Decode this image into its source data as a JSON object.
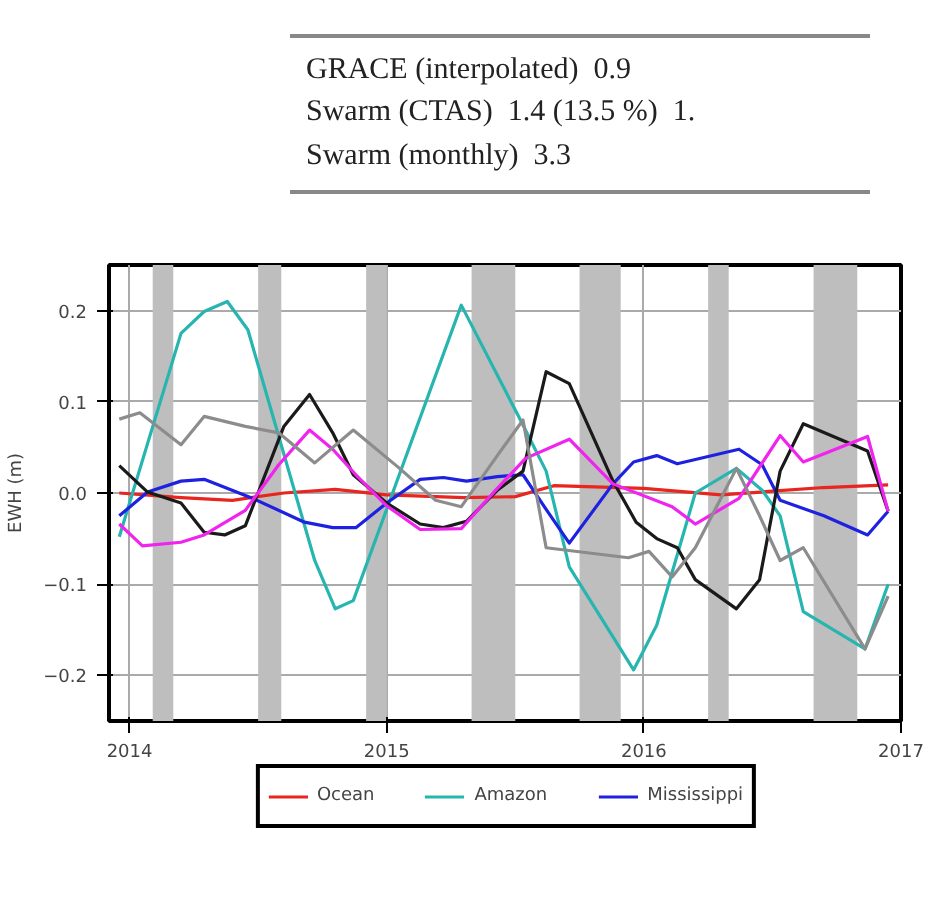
{
  "chart_data": {
    "type": "line",
    "ylabel": "EWH (m)",
    "annotations": [
      "GRACE (interpolated)  0.9",
      "Swarm (CTAS)  1.4 (13.5 %)  1.",
      "Swarm (monthly)  3.3"
    ],
    "xlim": [
      2013.92,
      2017.0
    ],
    "xticks": [
      2014,
      2015,
      2016,
      2017
    ],
    "ylim": [
      -0.25,
      0.25
    ],
    "yticks": [
      {
        "value": -0.2,
        "label": "−0.2"
      },
      {
        "value": -0.1,
        "label": "−0.1"
      },
      {
        "value": 0,
        "label": "0.0"
      },
      {
        "value": 0.1,
        "label": "0.1"
      },
      {
        "value": 0.2,
        "label": "0.2"
      }
    ],
    "grid": true,
    "legend": "bottom",
    "line_style": "solid",
    "bands": [
      {
        "axis": "x",
        "from": 2014.09,
        "to": 2014.17,
        "color": "#bebebe"
      },
      {
        "axis": "x",
        "from": 2014.5,
        "to": 2014.59,
        "color": "#bebebe"
      },
      {
        "axis": "x",
        "from": 2014.92,
        "to": 2015.0,
        "color": "#bebebe"
      },
      {
        "axis": "x",
        "from": 2015.33,
        "to": 2015.5,
        "color": "#bebebe"
      },
      {
        "axis": "x",
        "from": 2015.75,
        "to": 2015.91,
        "color": "#bebebe"
      },
      {
        "axis": "x",
        "from": 2016.25,
        "to": 2016.33,
        "color": "#bebebe"
      },
      {
        "axis": "x",
        "from": 2016.66,
        "to": 2016.83,
        "color": "#bebebe"
      }
    ],
    "series": [
      {
        "name": "Ocean",
        "color": "#e8251f",
        "x": [
          2013.96,
          2014.2,
          2014.4,
          2014.6,
          2014.8,
          2015.0,
          2015.3,
          2015.5,
          2015.65,
          2016.0,
          2016.3,
          2016.5,
          2016.7,
          2016.95
        ],
        "values": [
          0.0,
          -0.005,
          -0.008,
          0.0,
          0.004,
          -0.002,
          -0.005,
          -0.004,
          0.008,
          0.005,
          -0.002,
          0.002,
          0.006,
          0.009
        ]
      },
      {
        "name": "Amazon",
        "color": "#27b5b0",
        "x": [
          2013.96,
          2014.2,
          2014.29,
          2014.38,
          2014.46,
          2014.72,
          2014.8,
          2014.87,
          2015.29,
          2015.52,
          2015.62,
          2015.71,
          2015.96,
          2016.05,
          2016.2,
          2016.36,
          2016.46,
          2016.53,
          2016.62,
          2016.86,
          2016.95
        ],
        "values": [
          -0.048,
          0.175,
          0.199,
          0.21,
          0.179,
          -0.074,
          -0.127,
          -0.118,
          0.206,
          0.08,
          0.024,
          -0.081,
          -0.194,
          -0.145,
          0.0,
          0.027,
          0.003,
          -0.025,
          -0.13,
          -0.171,
          -0.1
        ]
      },
      {
        "name": "Mississippi",
        "color": "#1e22e0",
        "x": [
          2013.96,
          2014.07,
          2014.2,
          2014.29,
          2014.48,
          2014.68,
          2014.79,
          2014.88,
          2015.0,
          2015.13,
          2015.22,
          2015.31,
          2015.43,
          2015.53,
          2015.62,
          2015.71,
          2015.88,
          2015.96,
          2016.05,
          2016.13,
          2016.37,
          2016.46,
          2016.53,
          2016.7,
          2016.87,
          2016.95
        ],
        "values": [
          -0.025,
          0.001,
          0.013,
          0.015,
          -0.006,
          -0.032,
          -0.038,
          -0.038,
          -0.011,
          0.015,
          0.017,
          0.013,
          0.018,
          0.02,
          -0.018,
          -0.055,
          0.01,
          0.034,
          0.041,
          0.032,
          0.048,
          0.031,
          -0.008,
          -0.025,
          -0.046,
          -0.02
        ]
      },
      {
        "color": "#1a1a1a",
        "x": [
          2013.96,
          2014.07,
          2014.2,
          2014.29,
          2014.37,
          2014.45,
          2014.6,
          2014.7,
          2014.79,
          2014.87,
          2015.0,
          2015.13,
          2015.22,
          2015.31,
          2015.43,
          2015.53,
          2015.62,
          2015.71,
          2015.88,
          2015.97,
          2016.05,
          2016.13,
          2016.2,
          2016.36,
          2016.45,
          2016.53,
          2016.62,
          2016.87,
          2016.95
        ],
        "values": [
          0.03,
          0.001,
          -0.011,
          -0.043,
          -0.046,
          -0.036,
          0.073,
          0.108,
          0.066,
          0.02,
          -0.011,
          -0.034,
          -0.038,
          -0.031,
          0.003,
          0.024,
          0.133,
          0.12,
          0.013,
          -0.032,
          -0.05,
          -0.06,
          -0.095,
          -0.127,
          -0.095,
          0.024,
          0.076,
          0.046,
          -0.02
        ]
      },
      {
        "color": "#f024ee",
        "x": [
          2013.96,
          2014.05,
          2014.2,
          2014.29,
          2014.45,
          2014.58,
          2014.7,
          2014.79,
          2014.88,
          2015.0,
          2015.13,
          2015.29,
          2015.43,
          2015.54,
          2015.71,
          2015.88,
          2016.11,
          2016.2,
          2016.37,
          2016.53,
          2016.62,
          2016.87,
          2016.95
        ],
        "values": [
          -0.034,
          -0.058,
          -0.054,
          -0.046,
          -0.019,
          0.031,
          0.069,
          0.048,
          0.02,
          -0.014,
          -0.04,
          -0.039,
          0.005,
          0.038,
          0.059,
          0.01,
          -0.015,
          -0.034,
          -0.006,
          0.063,
          0.034,
          0.062,
          -0.02
        ]
      },
      {
        "color": "#8c8c8c",
        "x": [
          2013.96,
          2014.04,
          2014.2,
          2014.29,
          2014.45,
          2014.58,
          2014.72,
          2014.87,
          2015.05,
          2015.19,
          2015.29,
          2015.43,
          2015.53,
          2015.62,
          2015.94,
          2016.02,
          2016.11,
          2016.2,
          2016.36,
          2016.45,
          2016.53,
          2016.62,
          2016.86,
          2016.95
        ],
        "values": [
          0.081,
          0.088,
          0.053,
          0.084,
          0.073,
          0.066,
          0.033,
          0.069,
          0.027,
          -0.008,
          -0.015,
          0.041,
          0.08,
          -0.06,
          -0.071,
          -0.064,
          -0.092,
          -0.06,
          0.027,
          -0.025,
          -0.074,
          -0.06,
          -0.171,
          -0.113
        ]
      }
    ]
  }
}
